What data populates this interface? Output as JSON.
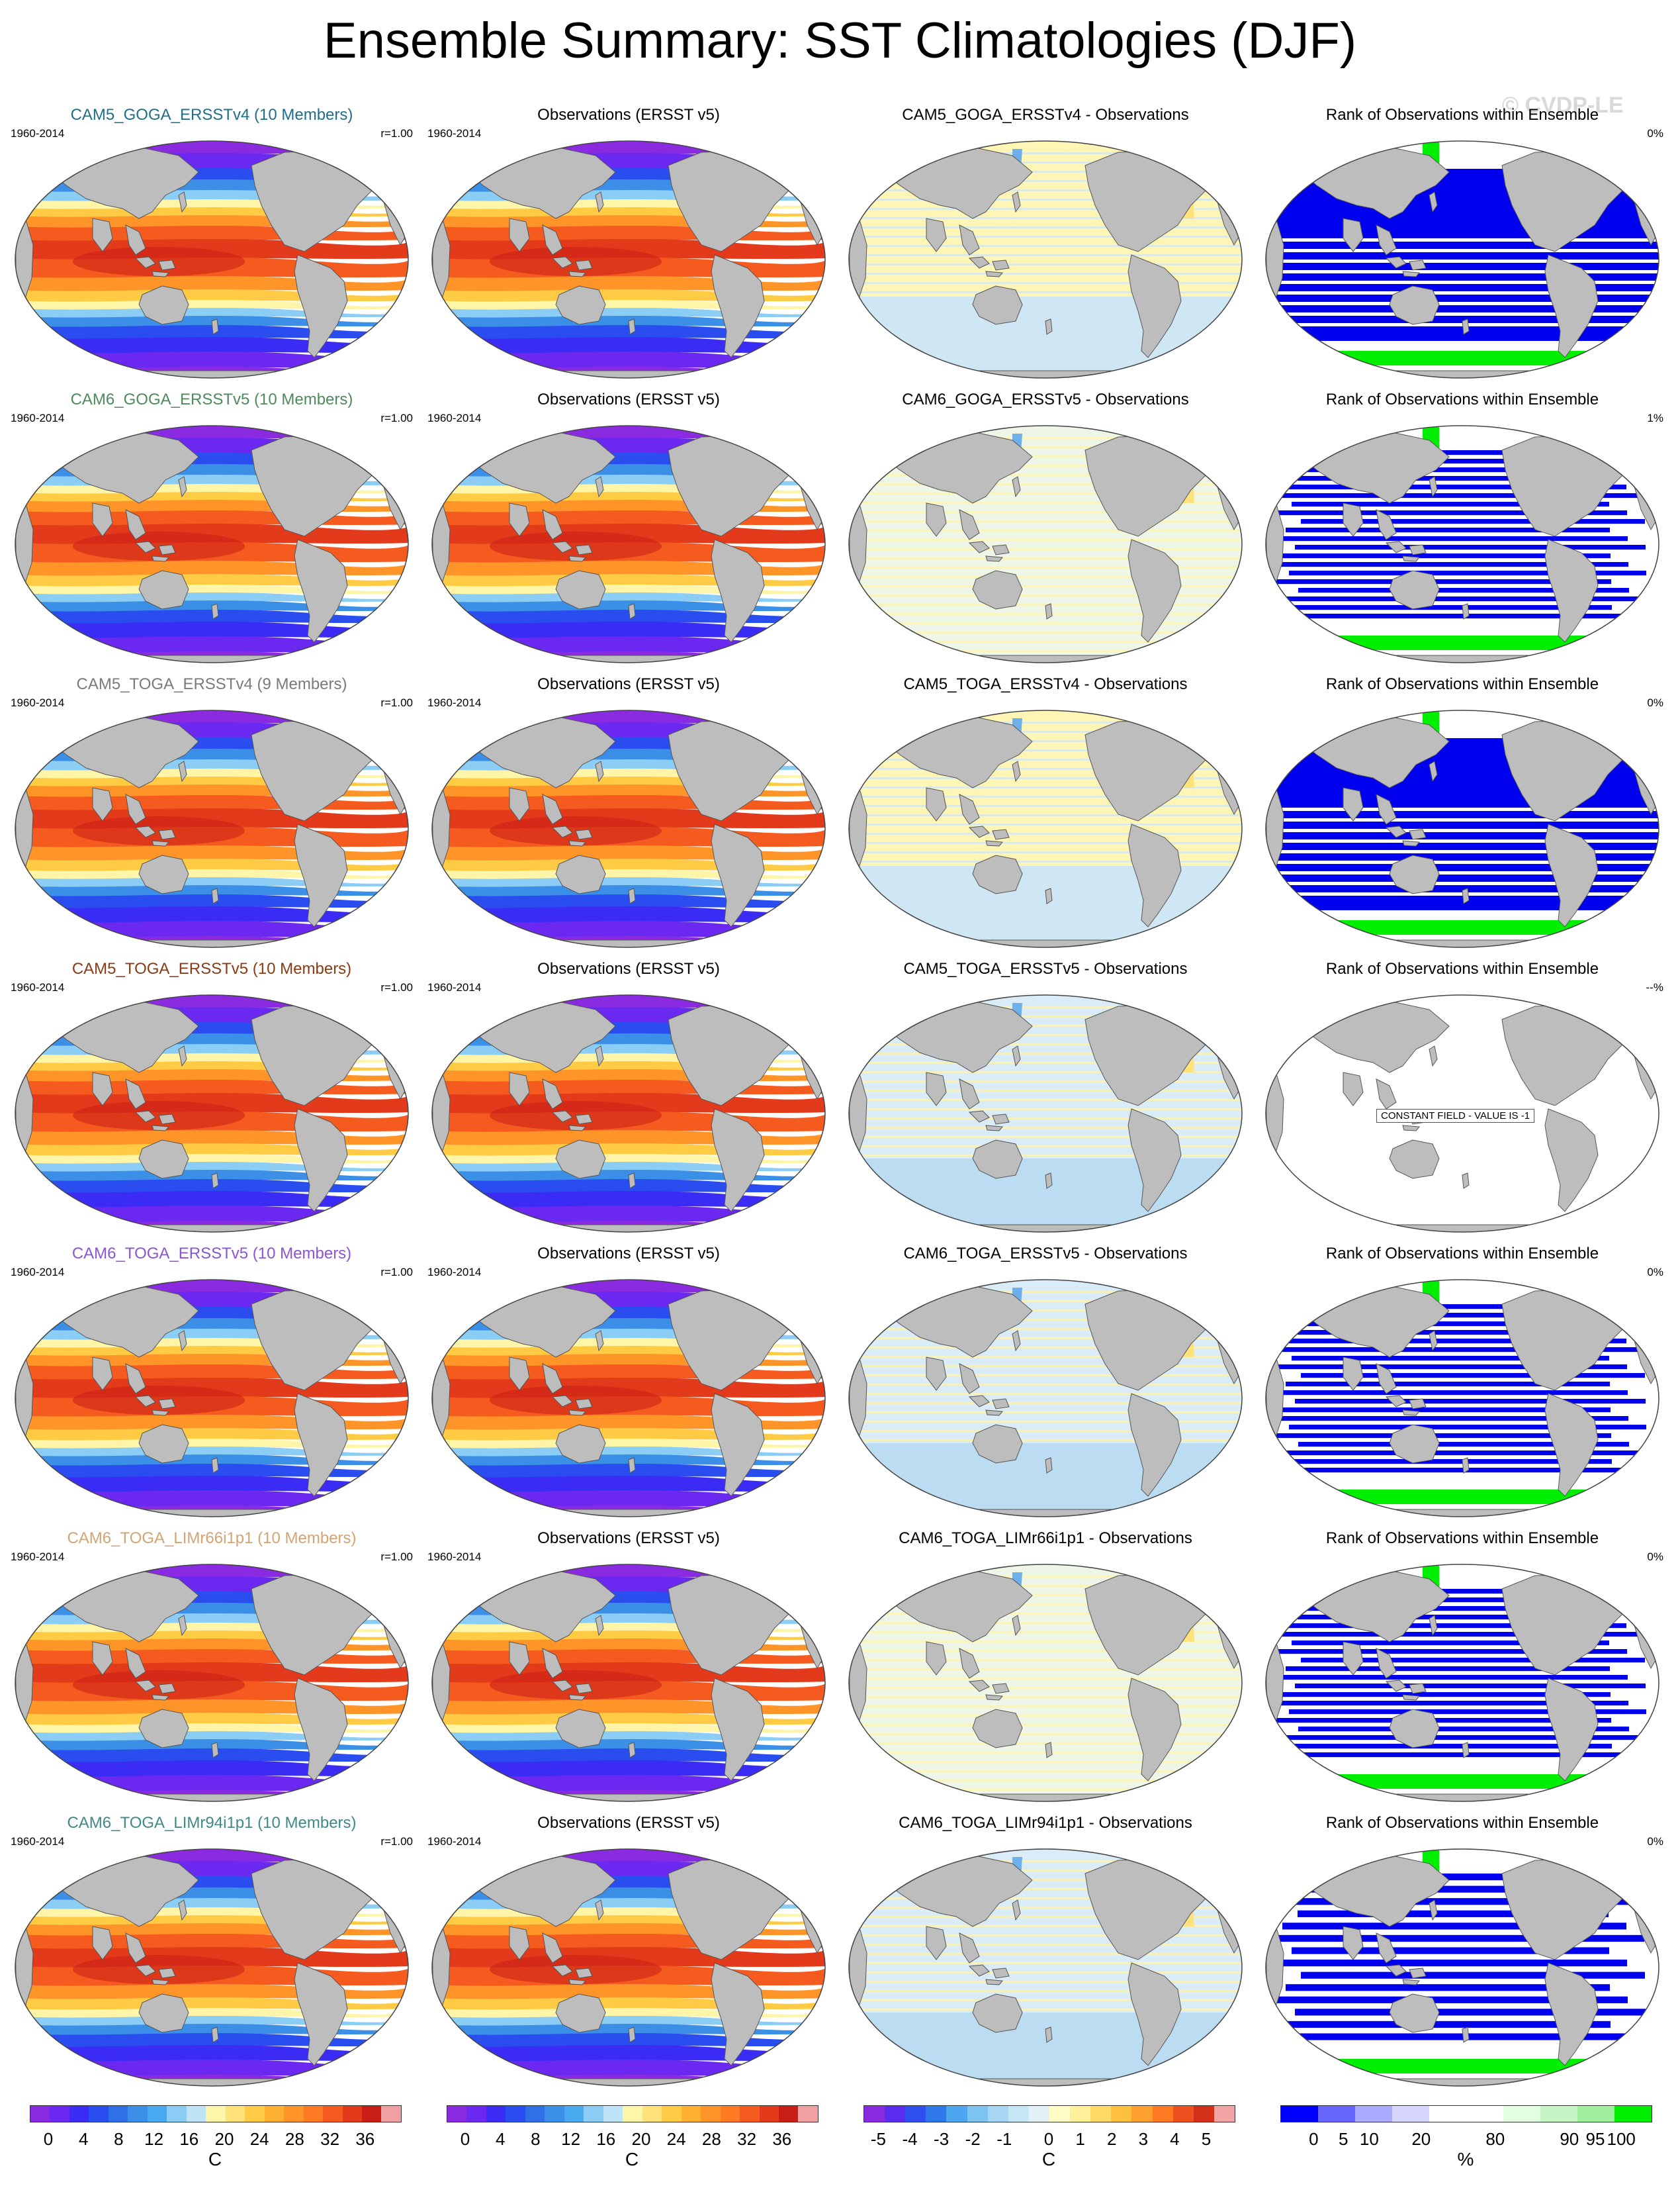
{
  "title": "Ensemble Summary: SST Climatologies (DJF)",
  "watermark": "© CVDP-LE",
  "rows": [
    {
      "ens_title": "CAM5_GOGA_ERSSTv4 (10 Members)",
      "ens_title_color": "#1f6e8c",
      "diff_title": "CAM5_GOGA_ERSSTv4 - Observations",
      "rank_value": "0%",
      "diff_style": "warm",
      "rank_style": "dense",
      "constant": false
    },
    {
      "ens_title": "CAM6_GOGA_ERSSTv5 (10 Members)",
      "ens_title_color": "#4f8a5b",
      "diff_title": "CAM6_GOGA_ERSSTv5 - Observations",
      "rank_value": "1%",
      "diff_style": "mixed",
      "rank_style": "striped",
      "constant": false
    },
    {
      "ens_title": "CAM5_TOGA_ERSSTv4 (9 Members)",
      "ens_title_color": "#7a7a7a",
      "diff_title": "CAM5_TOGA_ERSSTv4 - Observations",
      "rank_value": "0%",
      "diff_style": "warm",
      "rank_style": "dense",
      "constant": false
    },
    {
      "ens_title": "CAM5_TOGA_ERSSTv5 (10 Members)",
      "ens_title_color": "#8b3a12",
      "diff_title": "CAM5_TOGA_ERSSTv5 - Observations",
      "rank_value": "--%",
      "diff_style": "cool",
      "rank_style": "none",
      "constant": true,
      "constant_label": "CONSTANT FIELD - VALUE IS -1"
    },
    {
      "ens_title": "CAM6_TOGA_ERSSTv5 (10 Members)",
      "ens_title_color": "#8a55d6",
      "diff_title": "CAM6_TOGA_ERSSTv5 - Observations",
      "rank_value": "0%",
      "diff_style": "cool",
      "rank_style": "striped",
      "constant": false
    },
    {
      "ens_title": "CAM6_TOGA_LIMr66i1p1 (10 Members)",
      "ens_title_color": "#d4a373",
      "diff_title": "CAM6_TOGA_LIMr66i1p1 - Observations",
      "rank_value": "0%",
      "diff_style": "mixed",
      "rank_style": "striped",
      "constant": false
    },
    {
      "ens_title": "CAM6_TOGA_LIMr94i1p1 (10 Members)",
      "ens_title_color": "#3f8a88",
      "diff_title": "CAM6_TOGA_LIMr94i1p1 - Observations",
      "rank_value": "0%",
      "diff_style": "cool",
      "rank_style": "sparse",
      "constant": false
    }
  ],
  "common": {
    "years": "1960-2014",
    "r_value": "r=1.00",
    "obs_title": "Observations (ERSST v5)",
    "rank_title": "Rank of Observations within Ensemble"
  },
  "colorbars": {
    "sst": {
      "ticks": [
        "0",
        "4",
        "8",
        "12",
        "16",
        "20",
        "24",
        "28",
        "32",
        "36"
      ],
      "unit": "C",
      "colors": [
        "#8a2be2",
        "#6a28f0",
        "#3a2cf5",
        "#2a4df0",
        "#2f6fe8",
        "#3c8fe6",
        "#4aaaf0",
        "#8ccdf5",
        "#bfe3f7",
        "#fff5a8",
        "#ffe27a",
        "#ffcb45",
        "#ffb030",
        "#ff9428",
        "#ff7a22",
        "#f55a1e",
        "#e23a1a",
        "#c81e16",
        "#f0a0a0"
      ]
    },
    "diff": {
      "ticks": [
        "-5",
        "-4",
        "-3",
        "-2",
        "-1",
        "0",
        "1",
        "2",
        "3",
        "4",
        "5"
      ],
      "unit": "C",
      "colors": [
        "#8a2be2",
        "#5a2cf0",
        "#2f4ff0",
        "#2f78ea",
        "#4da6f0",
        "#7cc3f2",
        "#a6d6f4",
        "#c6e6f6",
        "#e3f1f7",
        "#fffbc4",
        "#fff199",
        "#ffd966",
        "#ffbf3f",
        "#ff9f2e",
        "#ff7a22",
        "#ef5020",
        "#d3301a",
        "#f2a4a4"
      ]
    },
    "rank": {
      "ticks": [
        "0",
        "5",
        "10",
        "20",
        "80",
        "90",
        "95",
        "100"
      ],
      "unit": "%",
      "colors": [
        "#0000ff",
        "#6666ff",
        "#aaaaff",
        "#d6d6ff",
        "#ffffff",
        "#ffffff",
        "#e2ffe2",
        "#c6f5c6",
        "#a0f0a0",
        "#00ee00"
      ]
    }
  },
  "colors": {
    "land": "#bdbdbd",
    "rank_blue": "#0000ee",
    "rank_green": "#00ee00"
  }
}
